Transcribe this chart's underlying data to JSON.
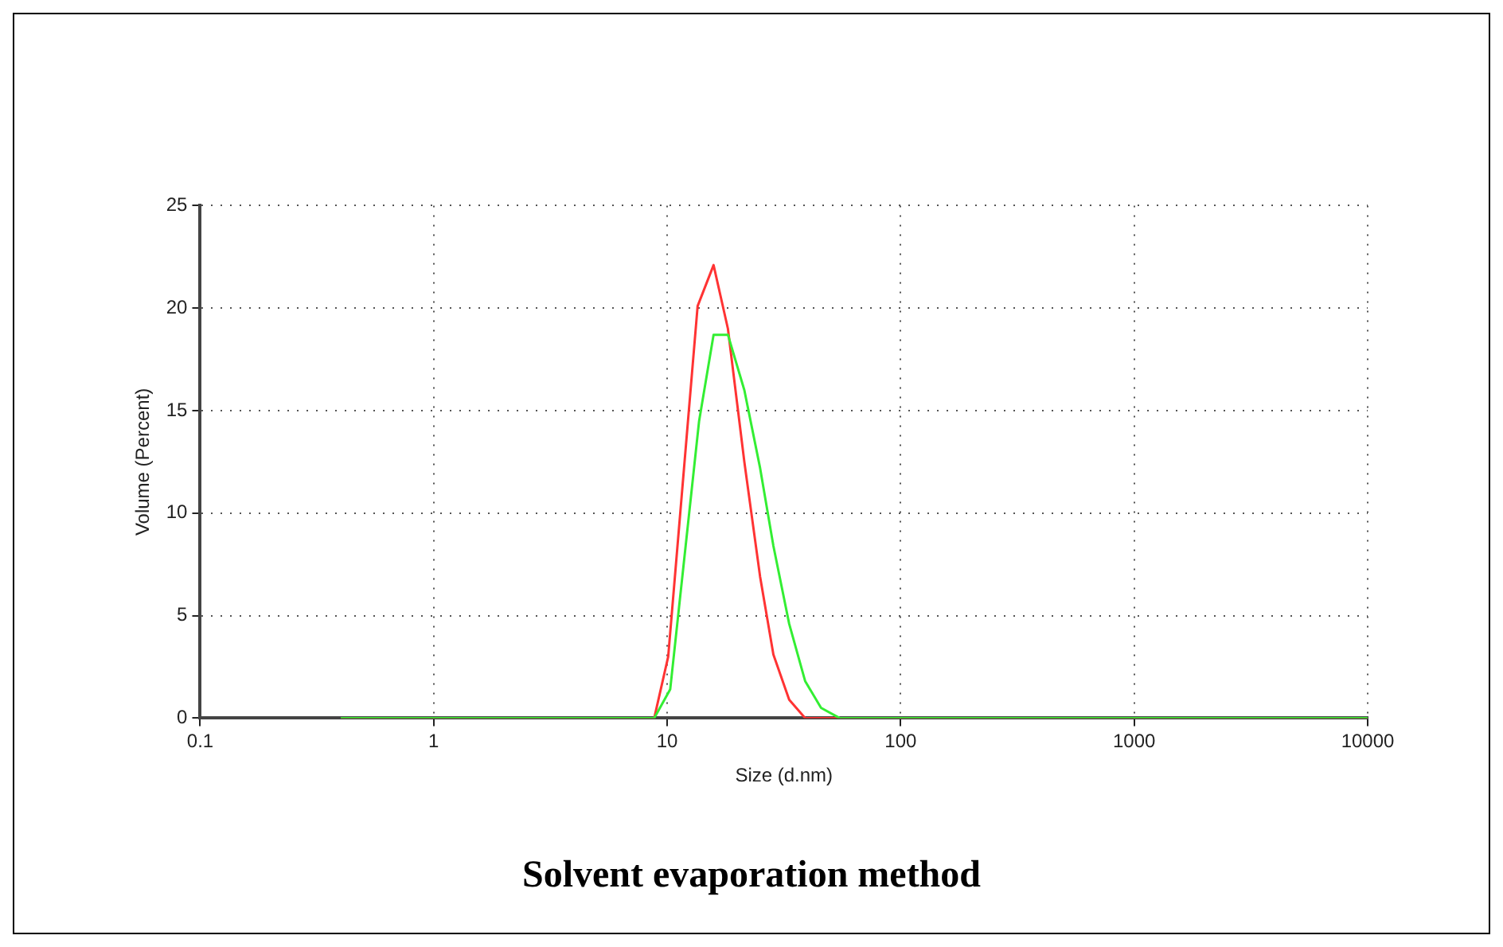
{
  "chart_data": {
    "type": "line",
    "title": "Solvent evaporation method",
    "xlabel": "Size (d.nm)",
    "ylabel": "Volume (Percent)",
    "log": "x",
    "grid": true,
    "legend": false,
    "marker": "none",
    "line_style": "solid",
    "xlim": [
      0.1,
      10000
    ],
    "xticks": [
      0.1,
      1,
      10,
      100,
      1000,
      10000
    ],
    "ylim": [
      0,
      25
    ],
    "yticks": [
      0,
      5,
      10,
      15,
      20,
      25
    ],
    "series": [
      {
        "color": "#ff3333",
        "x": [
          0.4,
          8.8,
          10.1,
          13.5,
          15.8,
          18.2,
          21.4,
          25,
          28.5,
          33.3,
          39,
          45.6,
          10000
        ],
        "values": [
          0,
          0,
          3,
          20.1,
          22.1,
          19,
          12.5,
          6.9,
          3.1,
          0.9,
          0,
          0,
          0
        ]
      },
      {
        "color": "#33ee33",
        "x": [
          0.4,
          8.8,
          10.3,
          13.7,
          15.8,
          18.2,
          21.4,
          25,
          28.5,
          33.3,
          39,
          45.6,
          54.8,
          10000
        ],
        "values": [
          0,
          0,
          1.4,
          14.5,
          18.7,
          18.7,
          16,
          12.2,
          8.4,
          4.6,
          1.8,
          0.5,
          0,
          0
        ]
      }
    ]
  }
}
